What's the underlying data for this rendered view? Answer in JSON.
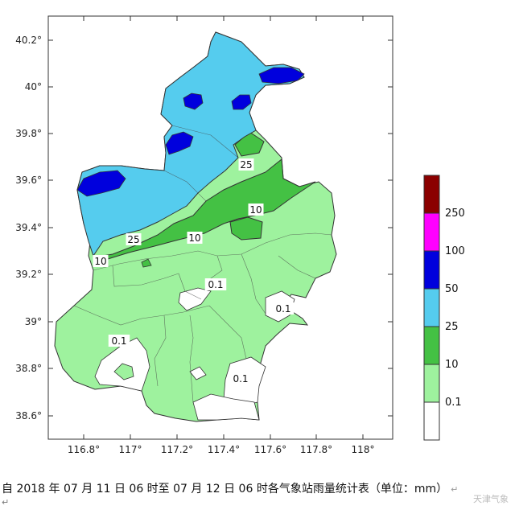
{
  "map": {
    "lat_ticks": [
      "40.2°",
      "40°",
      "39.8°",
      "39.6°",
      "39.4°",
      "39.2°",
      "39°",
      "38.8°",
      "38.6°"
    ],
    "lon_ticks": [
      "116.8°",
      "117°",
      "117.2°",
      "117.4°",
      "117.6°",
      "117.8°",
      "118°"
    ],
    "contour_labels": [
      "25",
      "10",
      "25",
      "10",
      "10",
      "0.1",
      "0.1",
      "0.1",
      "0.1"
    ]
  },
  "legend": {
    "labels": [
      "250",
      "100",
      "50",
      "25",
      "10",
      "0.1"
    ],
    "colors": [
      "#8b0000",
      "#ff00ff",
      "#0000dd",
      "#55ccee",
      "#44c144",
      "#9ef29e",
      "#ffffff"
    ]
  },
  "caption": {
    "text": "自 2018 年 07 月 11 日 06 时至 07 月 12 日 06 时各气象站雨量统计表（单位：mm）",
    "mark": "↵",
    "sub_mark": "↵",
    "watermark": "天津气象"
  }
}
